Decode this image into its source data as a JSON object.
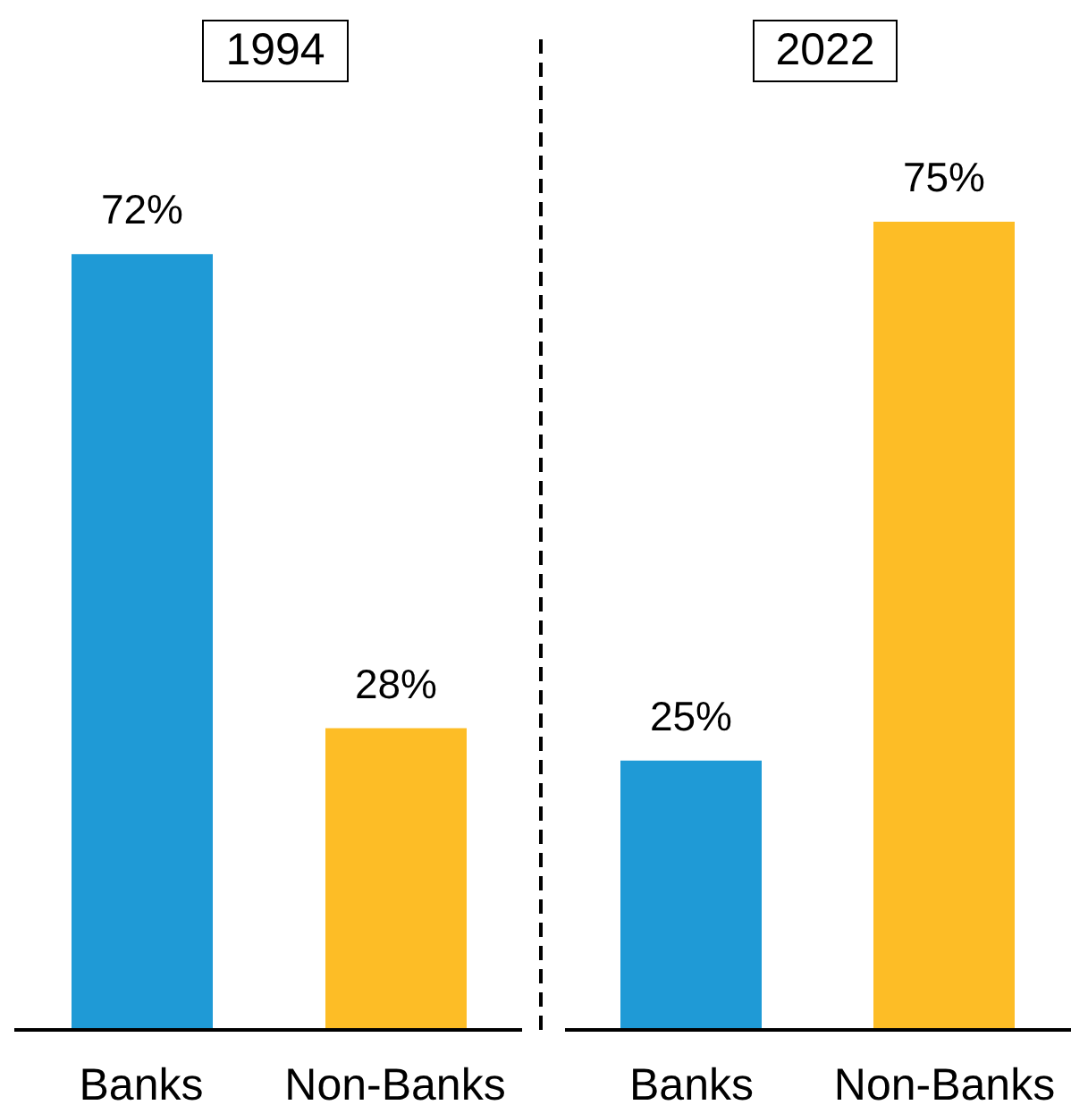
{
  "chart_data": [
    {
      "type": "bar",
      "title": "1994",
      "categories": [
        "Banks",
        "Non-Banks"
      ],
      "values": [
        72,
        28
      ],
      "colors": [
        "#1f9ad6",
        "#fdbd26"
      ],
      "value_labels": [
        "72%",
        "28%"
      ]
    },
    {
      "type": "bar",
      "title": "2022",
      "categories": [
        "Banks",
        "Non-Banks"
      ],
      "values": [
        25,
        75
      ],
      "colors": [
        "#1f9ad6",
        "#fdbd26"
      ],
      "value_labels": [
        "25%",
        "75%"
      ]
    }
  ]
}
